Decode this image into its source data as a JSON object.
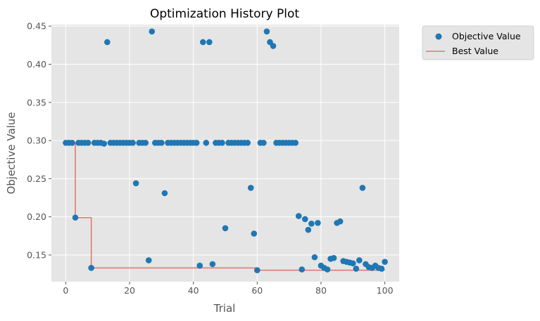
{
  "chart_data": {
    "type": "scatter",
    "title": "Optimization History Plot",
    "xlabel": "Trial",
    "ylabel": "Objective Value",
    "xlim": [
      -4.5,
      104.5
    ],
    "ylim": [
      0.115,
      0.452
    ],
    "x_ticks": [
      0,
      20,
      40,
      60,
      80,
      100
    ],
    "y_ticks": [
      0.15,
      0.2,
      0.25,
      0.3,
      0.35,
      0.4,
      0.45
    ],
    "x_tick_labels": [
      "0",
      "20",
      "40",
      "60",
      "80",
      "100"
    ],
    "y_tick_labels": [
      "0.15",
      "0.20",
      "0.25",
      "0.30",
      "0.35",
      "0.40",
      "0.45"
    ],
    "grid": true,
    "legend_position": "outside upper-right",
    "colors": {
      "scatter": "#1f77b4",
      "best_line": "#e07b74",
      "plot_background": "#e5e5e5",
      "grid": "#ffffff"
    },
    "series": [
      {
        "name": "Objective Value",
        "kind": "scatter",
        "points": [
          [
            0,
            0.297
          ],
          [
            1,
            0.297
          ],
          [
            2,
            0.297
          ],
          [
            3,
            0.199
          ],
          [
            4,
            0.297
          ],
          [
            5,
            0.297
          ],
          [
            6,
            0.297
          ],
          [
            7,
            0.297
          ],
          [
            8,
            0.133
          ],
          [
            9,
            0.297
          ],
          [
            10,
            0.297
          ],
          [
            11,
            0.297
          ],
          [
            12,
            0.296
          ],
          [
            13,
            0.429
          ],
          [
            14,
            0.297
          ],
          [
            15,
            0.297
          ],
          [
            16,
            0.297
          ],
          [
            17,
            0.297
          ],
          [
            18,
            0.297
          ],
          [
            19,
            0.297
          ],
          [
            20,
            0.297
          ],
          [
            21,
            0.297
          ],
          [
            22,
            0.244
          ],
          [
            23,
            0.297
          ],
          [
            24,
            0.297
          ],
          [
            25,
            0.297
          ],
          [
            26,
            0.143
          ],
          [
            27,
            0.443
          ],
          [
            28,
            0.297
          ],
          [
            29,
            0.297
          ],
          [
            30,
            0.297
          ],
          [
            31,
            0.231
          ],
          [
            32,
            0.297
          ],
          [
            33,
            0.297
          ],
          [
            34,
            0.297
          ],
          [
            35,
            0.297
          ],
          [
            36,
            0.297
          ],
          [
            37,
            0.297
          ],
          [
            38,
            0.297
          ],
          [
            39,
            0.297
          ],
          [
            40,
            0.297
          ],
          [
            41,
            0.297
          ],
          [
            42,
            0.136
          ],
          [
            43,
            0.429
          ],
          [
            44,
            0.297
          ],
          [
            45,
            0.429
          ],
          [
            46,
            0.138
          ],
          [
            47,
            0.297
          ],
          [
            48,
            0.297
          ],
          [
            49,
            0.297
          ],
          [
            50,
            0.185
          ],
          [
            51,
            0.297
          ],
          [
            52,
            0.297
          ],
          [
            53,
            0.297
          ],
          [
            54,
            0.297
          ],
          [
            55,
            0.297
          ],
          [
            56,
            0.297
          ],
          [
            57,
            0.297
          ],
          [
            58,
            0.238
          ],
          [
            59,
            0.178
          ],
          [
            60,
            0.13
          ],
          [
            61,
            0.297
          ],
          [
            62,
            0.297
          ],
          [
            63,
            0.443
          ],
          [
            64,
            0.429
          ],
          [
            65,
            0.424
          ],
          [
            66,
            0.297
          ],
          [
            67,
            0.297
          ],
          [
            68,
            0.297
          ],
          [
            69,
            0.297
          ],
          [
            70,
            0.297
          ],
          [
            71,
            0.297
          ],
          [
            72,
            0.297
          ],
          [
            73,
            0.201
          ],
          [
            74,
            0.131
          ],
          [
            75,
            0.197
          ],
          [
            76,
            0.183
          ],
          [
            77,
            0.191
          ],
          [
            78,
            0.147
          ],
          [
            79,
            0.192
          ],
          [
            80,
            0.136
          ],
          [
            81,
            0.133
          ],
          [
            82,
            0.131
          ],
          [
            83,
            0.145
          ],
          [
            84,
            0.146
          ],
          [
            85,
            0.192
          ],
          [
            86,
            0.194
          ],
          [
            87,
            0.142
          ],
          [
            88,
            0.141
          ],
          [
            89,
            0.14
          ],
          [
            90,
            0.139
          ],
          [
            91,
            0.132
          ],
          [
            92,
            0.143
          ],
          [
            93,
            0.238
          ],
          [
            94,
            0.138
          ],
          [
            95,
            0.134
          ],
          [
            96,
            0.133
          ],
          [
            97,
            0.136
          ],
          [
            98,
            0.133
          ],
          [
            99,
            0.132
          ],
          [
            100,
            0.141
          ]
        ]
      },
      {
        "name": "Best Value",
        "kind": "line",
        "points": [
          [
            0,
            0.297
          ],
          [
            1,
            0.297
          ],
          [
            2,
            0.297
          ],
          [
            3,
            0.199
          ],
          [
            4,
            0.199
          ],
          [
            5,
            0.199
          ],
          [
            6,
            0.199
          ],
          [
            7,
            0.199
          ],
          [
            8,
            0.133
          ],
          [
            59,
            0.133
          ],
          [
            60,
            0.13
          ],
          [
            100,
            0.13
          ]
        ]
      }
    ]
  }
}
